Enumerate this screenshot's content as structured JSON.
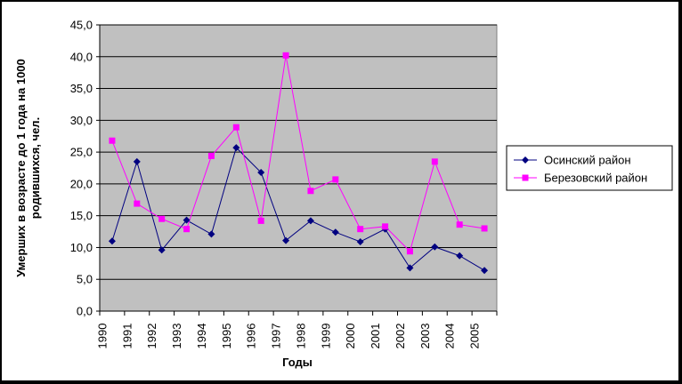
{
  "chart_data": {
    "type": "line",
    "title": "",
    "xlabel": "Годы",
    "ylabel_lines": [
      "Умерших в возрасте до 1 года на 1000",
      "родившихся, чел."
    ],
    "categories": [
      "1990",
      "1991",
      "1992",
      "1993",
      "1994",
      "1995",
      "1996",
      "1997",
      "1998",
      "1999",
      "2000",
      "2001",
      "2002",
      "2003",
      "2004",
      "2005"
    ],
    "y_tick_labels": [
      "0,0",
      "5,0",
      "10,0",
      "15,0",
      "20,0",
      "25,0",
      "30,0",
      "35,0",
      "40,0",
      "45,0"
    ],
    "ylim": [
      0,
      45
    ],
    "grid": true,
    "legend_position": "right",
    "background_color": "#c0c0c0",
    "series": [
      {
        "name": "Осинский район",
        "color": "#000080",
        "marker": "diamond",
        "values": [
          11.0,
          23.5,
          9.6,
          14.3,
          12.1,
          25.7,
          21.8,
          11.1,
          14.2,
          12.4,
          10.9,
          12.9,
          6.8,
          10.1,
          8.7,
          6.4
        ]
      },
      {
        "name": "Березовский район",
        "color": "#ff00ff",
        "marker": "square",
        "values": [
          26.8,
          16.9,
          14.5,
          12.9,
          24.4,
          28.9,
          14.2,
          40.2,
          18.9,
          20.7,
          12.9,
          13.3,
          9.4,
          23.5,
          13.6,
          13.0
        ]
      }
    ]
  }
}
